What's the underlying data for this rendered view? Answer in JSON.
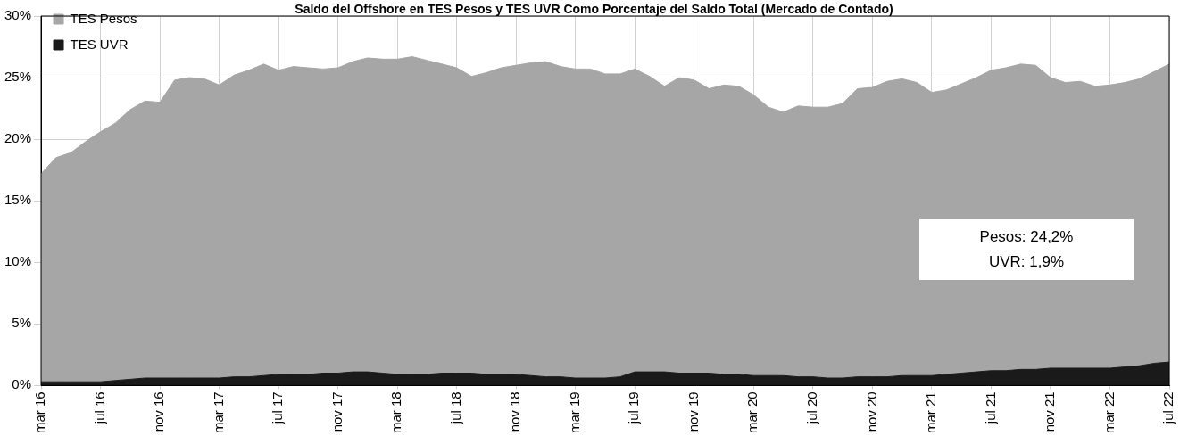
{
  "chart_data": {
    "type": "area",
    "title": "Saldo del Offshore en TES Pesos y TES UVR Como Porcentaje del Saldo Total (Mercado de Contado)",
    "x": [
      "2016-03",
      "2016-04",
      "2016-05",
      "2016-06",
      "2016-07",
      "2016-08",
      "2016-09",
      "2016-10",
      "2016-11",
      "2016-12",
      "2017-01",
      "2017-02",
      "2017-03",
      "2017-04",
      "2017-05",
      "2017-06",
      "2017-07",
      "2017-08",
      "2017-09",
      "2017-10",
      "2017-11",
      "2017-12",
      "2018-01",
      "2018-02",
      "2018-03",
      "2018-04",
      "2018-05",
      "2018-06",
      "2018-07",
      "2018-08",
      "2018-09",
      "2018-10",
      "2018-11",
      "2018-12",
      "2019-01",
      "2019-02",
      "2019-03",
      "2019-04",
      "2019-05",
      "2019-06",
      "2019-07",
      "2019-08",
      "2019-09",
      "2019-10",
      "2019-11",
      "2019-12",
      "2020-01",
      "2020-02",
      "2020-03",
      "2020-04",
      "2020-05",
      "2020-06",
      "2020-07",
      "2020-08",
      "2020-09",
      "2020-10",
      "2020-11",
      "2020-12",
      "2021-01",
      "2021-02",
      "2021-03",
      "2021-04",
      "2021-05",
      "2021-06",
      "2021-07",
      "2021-08",
      "2021-09",
      "2021-10",
      "2021-11",
      "2021-12",
      "2022-01",
      "2022-02",
      "2022-03",
      "2022-04",
      "2022-05",
      "2022-06",
      "2022-07"
    ],
    "stacked": true,
    "series": [
      {
        "name": "TES UVR",
        "color": "#1a1a1a",
        "values": [
          0.3,
          0.3,
          0.3,
          0.3,
          0.3,
          0.4,
          0.5,
          0.6,
          0.6,
          0.6,
          0.6,
          0.6,
          0.6,
          0.7,
          0.7,
          0.8,
          0.9,
          0.9,
          0.9,
          1.0,
          1.0,
          1.1,
          1.1,
          1.0,
          0.9,
          0.9,
          0.9,
          1.0,
          1.0,
          1.0,
          0.9,
          0.9,
          0.9,
          0.8,
          0.7,
          0.7,
          0.6,
          0.6,
          0.6,
          0.7,
          1.1,
          1.1,
          1.1,
          1.0,
          1.0,
          1.0,
          0.9,
          0.9,
          0.8,
          0.8,
          0.8,
          0.7,
          0.7,
          0.6,
          0.6,
          0.7,
          0.7,
          0.7,
          0.8,
          0.8,
          0.8,
          0.9,
          1.0,
          1.1,
          1.2,
          1.2,
          1.3,
          1.3,
          1.4,
          1.4,
          1.4,
          1.4,
          1.4,
          1.5,
          1.6,
          1.8,
          1.9
        ]
      },
      {
        "name": "TES Pesos",
        "color": "#a6a6a6",
        "values": [
          16.9,
          18.2,
          18.6,
          19.5,
          20.3,
          20.9,
          21.9,
          22.5,
          22.4,
          24.2,
          24.4,
          24.3,
          23.8,
          24.5,
          24.9,
          25.3,
          24.7,
          25.0,
          24.9,
          24.7,
          24.8,
          25.2,
          25.5,
          25.5,
          25.6,
          25.8,
          25.5,
          25.1,
          24.8,
          24.1,
          24.5,
          24.9,
          25.1,
          25.4,
          25.6,
          25.2,
          25.1,
          25.1,
          24.7,
          24.6,
          24.6,
          24.0,
          23.2,
          24.0,
          23.8,
          23.1,
          23.5,
          23.4,
          22.8,
          21.8,
          21.4,
          22.0,
          21.9,
          22.0,
          22.3,
          23.4,
          23.5,
          24.0,
          24.1,
          23.8,
          23.0,
          23.1,
          23.5,
          23.9,
          24.4,
          24.6,
          24.8,
          24.7,
          23.6,
          23.2,
          23.3,
          22.9,
          23.0,
          23.1,
          23.3,
          23.7,
          24.2
        ]
      }
    ],
    "xlim": [
      "2016-03",
      "2022-07"
    ],
    "xticks": [
      {
        "value": "2016-03",
        "label": "mar 16"
      },
      {
        "value": "2016-07",
        "label": "jul 16"
      },
      {
        "value": "2016-11",
        "label": "nov 16"
      },
      {
        "value": "2017-03",
        "label": "mar 17"
      },
      {
        "value": "2017-07",
        "label": "jul 17"
      },
      {
        "value": "2017-11",
        "label": "nov 17"
      },
      {
        "value": "2018-03",
        "label": "mar 18"
      },
      {
        "value": "2018-07",
        "label": "jul 18"
      },
      {
        "value": "2018-11",
        "label": "nov 18"
      },
      {
        "value": "2019-03",
        "label": "mar 19"
      },
      {
        "value": "2019-07",
        "label": "jul 19"
      },
      {
        "value": "2019-11",
        "label": "nov 19"
      },
      {
        "value": "2020-03",
        "label": "mar 20"
      },
      {
        "value": "2020-07",
        "label": "jul 20"
      },
      {
        "value": "2020-11",
        "label": "nov 20"
      },
      {
        "value": "2021-03",
        "label": "mar 21"
      },
      {
        "value": "2021-07",
        "label": "jul 21"
      },
      {
        "value": "2021-11",
        "label": "nov 21"
      },
      {
        "value": "2022-03",
        "label": "mar 22"
      },
      {
        "value": "2022-07",
        "label": "jul 22"
      }
    ],
    "ylim": [
      0,
      30
    ],
    "yticks": [
      {
        "value": 0,
        "label": "0%"
      },
      {
        "value": 5,
        "label": "5%"
      },
      {
        "value": 10,
        "label": "10%"
      },
      {
        "value": 15,
        "label": "15%"
      },
      {
        "value": 20,
        "label": "20%"
      },
      {
        "value": 25,
        "label": "25%"
      },
      {
        "value": 30,
        "label": "30%"
      }
    ],
    "grid": true,
    "legend": "top left",
    "annotations": [
      "Pesos: 24,2%",
      "UVR: 1,9%"
    ]
  }
}
